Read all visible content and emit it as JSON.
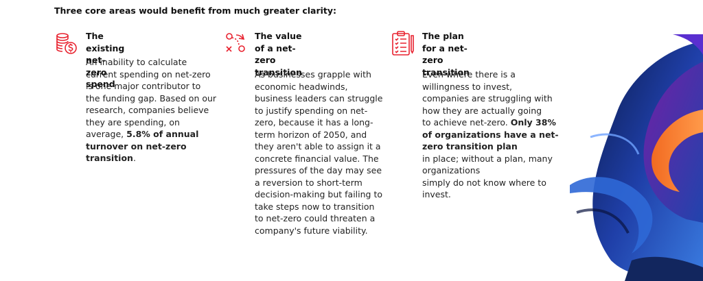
{
  "heading": "Three core areas would benefit from much greater clarity:",
  "columns": [
    {
      "icon": "coins-dollar-icon",
      "title": "The existing net-zero spend",
      "body": [
        [
          {
            "t": "An inability to calculate"
          }
        ],
        [
          {
            "t": "current spending on net-zero"
          }
        ],
        [
          {
            "t": "is one major contributor to"
          }
        ],
        [
          {
            "t": "the funding gap. Based on our"
          }
        ],
        [
          {
            "t": "research, companies believe"
          }
        ],
        [
          {
            "t": "they are spending, on"
          }
        ],
        [
          {
            "t": "average, "
          },
          {
            "t": "5.8% of annual",
            "b": true
          }
        ],
        [
          {
            "t": "turnover on net-zero",
            "b": true
          }
        ],
        [
          {
            "t": "transition",
            "b": true
          },
          {
            "t": "."
          }
        ]
      ]
    },
    {
      "icon": "strategy-play-icon",
      "title": [
        "The value of a net-zero",
        "transition"
      ],
      "body": [
        [
          {
            "t": "As businesses grapple with"
          }
        ],
        [
          {
            "t": "economic headwinds,"
          }
        ],
        [
          {
            "t": "business leaders can struggle"
          }
        ],
        [
          {
            "t": "to justify spending on net-"
          }
        ],
        [
          {
            "t": "zero, because it has a long-"
          }
        ],
        [
          {
            "t": "term horizon of 2050, and"
          }
        ],
        [
          {
            "t": "they aren't able to assign it a"
          }
        ],
        [
          {
            "t": "concrete financial value. The"
          }
        ],
        [
          {
            "t": "pressures of the day may see"
          }
        ],
        [
          {
            "t": "a reversion to short-term"
          }
        ],
        [
          {
            "t": "decision-making but failing to"
          }
        ],
        [
          {
            "t": "take steps now to transition"
          }
        ],
        [
          {
            "t": "to net-zero could threaten a"
          }
        ],
        [
          {
            "t": "company's future viability."
          }
        ]
      ]
    },
    {
      "icon": "clipboard-checklist-icon",
      "title": [
        "The plan for a net-zero",
        "transition"
      ],
      "body": [
        [
          {
            "t": "Even where there is a"
          }
        ],
        [
          {
            "t": "willingness to invest,"
          }
        ],
        [
          {
            "t": "companies are struggling with"
          }
        ],
        [
          {
            "t": "how they are actually going"
          }
        ],
        [
          {
            "t": "to achieve net-zero. "
          },
          {
            "t": "Only 38%",
            "b": true
          }
        ],
        [
          {
            "t": "of organizations have a net-",
            "b": true
          }
        ],
        [
          {
            "t": "zero transition plan",
            "b": true
          }
        ],
        [
          {
            "t": "in place; without a plan, many"
          }
        ],
        [
          {
            "t": "organizations"
          }
        ],
        [
          {
            "t": "simply do not know where to"
          }
        ],
        [
          {
            "t": "invest."
          }
        ]
      ]
    }
  ],
  "colors": {
    "icon_red": "#e8212e",
    "text": "#222222",
    "art": [
      "#1f3fa8",
      "#3a7be0",
      "#f26a21",
      "#7a1fa8",
      "#0b1a4a"
    ]
  },
  "decoration": "abstract-swirl-artwork"
}
